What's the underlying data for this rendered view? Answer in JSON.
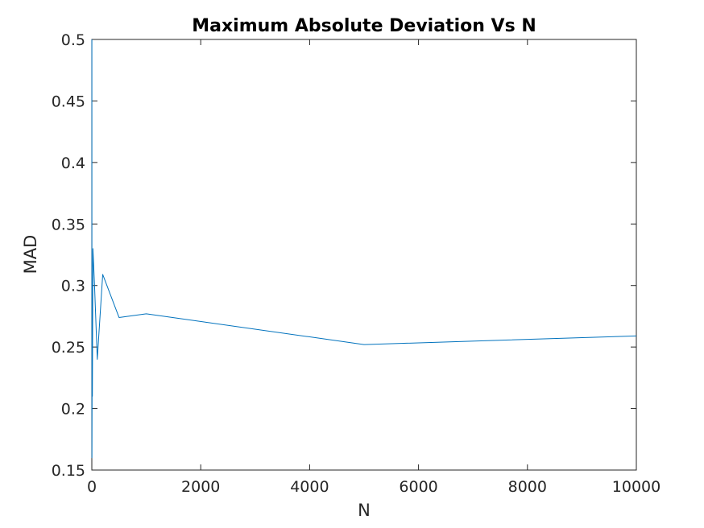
{
  "chart_data": {
    "type": "line",
    "title": "Maximum Absolute Deviation Vs N",
    "xlabel": "N",
    "ylabel": "MAD",
    "xlim": [
      0,
      10000
    ],
    "ylim": [
      0.15,
      0.5
    ],
    "x_ticks": [
      "0",
      "2000",
      "4000",
      "6000",
      "8000",
      "10000"
    ],
    "y_ticks": [
      "0.15",
      "0.2",
      "0.25",
      "0.3",
      "0.35",
      "0.4",
      "0.45",
      "0.5"
    ],
    "grid": false,
    "line_color": "#0072BD",
    "series": [
      {
        "x": [
          1,
          2,
          5,
          10,
          20,
          50,
          100,
          200,
          500,
          1000,
          5000,
          10000
        ],
        "y": [
          0.5,
          0.16,
          0.22,
          0.21,
          0.33,
          0.3,
          0.24,
          0.309,
          0.274,
          0.277,
          0.252,
          0.259
        ]
      }
    ]
  }
}
